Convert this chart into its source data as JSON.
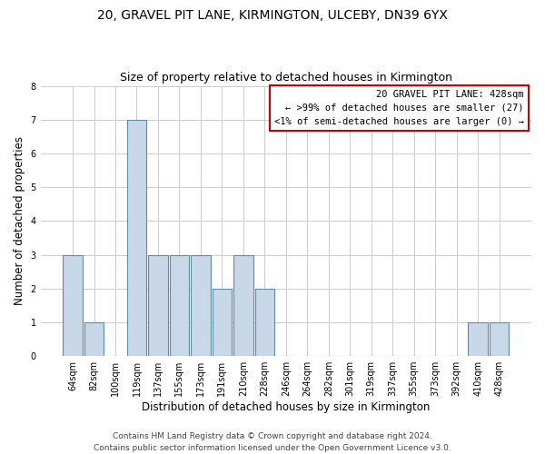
{
  "title": "20, GRAVEL PIT LANE, KIRMINGTON, ULCEBY, DN39 6YX",
  "subtitle": "Size of property relative to detached houses in Kirmington",
  "xlabel": "Distribution of detached houses by size in Kirmington",
  "ylabel": "Number of detached properties",
  "categories": [
    "64sqm",
    "82sqm",
    "100sqm",
    "119sqm",
    "137sqm",
    "155sqm",
    "173sqm",
    "191sqm",
    "210sqm",
    "228sqm",
    "246sqm",
    "264sqm",
    "282sqm",
    "301sqm",
    "319sqm",
    "337sqm",
    "355sqm",
    "373sqm",
    "392sqm",
    "410sqm",
    "428sqm"
  ],
  "values": [
    3,
    1,
    0,
    7,
    3,
    3,
    3,
    2,
    3,
    2,
    0,
    0,
    0,
    0,
    0,
    0,
    0,
    0,
    0,
    1,
    1
  ],
  "bar_color": "#c8d8e8",
  "bar_edge_color": "#5a8fa8",
  "ylim": [
    0,
    8
  ],
  "yticks": [
    0,
    1,
    2,
    3,
    4,
    5,
    6,
    7,
    8
  ],
  "grid_color": "#cccccc",
  "background_color": "#ffffff",
  "legend_title": "20 GRAVEL PIT LANE: 428sqm",
  "legend_line1": "← >99% of detached houses are smaller (27)",
  "legend_line2": "<1% of semi-detached houses are larger (0) →",
  "legend_box_color": "#ffffff",
  "legend_box_edge_color": "#cc0000",
  "footer1": "Contains HM Land Registry data © Crown copyright and database right 2024.",
  "footer2": "Contains public sector information licensed under the Open Government Licence v3.0.",
  "title_fontsize": 10,
  "subtitle_fontsize": 9,
  "xlabel_fontsize": 8.5,
  "ylabel_fontsize": 8.5,
  "tick_fontsize": 7,
  "legend_fontsize": 7.5,
  "footer_fontsize": 6.5
}
